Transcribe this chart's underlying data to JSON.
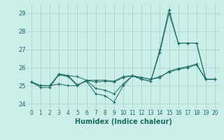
{
  "xlabel": "Humidex (Indice chaleur)",
  "bg_color": "#cceee8",
  "grid_color": "#aad4ce",
  "line_color": "#1a6b63",
  "xlim": [
    -0.5,
    20.5
  ],
  "ylim": [
    23.7,
    29.5
  ],
  "yticks": [
    24,
    25,
    26,
    27,
    28,
    29
  ],
  "xticks": [
    0,
    1,
    2,
    3,
    4,
    5,
    6,
    7,
    8,
    9,
    10,
    11,
    12,
    13,
    14,
    15,
    16,
    17,
    18,
    19,
    20
  ],
  "lines": [
    {
      "x": [
        0,
        1,
        2,
        3,
        4,
        5,
        6,
        7,
        8,
        9,
        10,
        11,
        12,
        13,
        14,
        15,
        16,
        17,
        18,
        19,
        20
      ],
      "y": [
        25.2,
        25.0,
        25.0,
        25.65,
        25.55,
        25.5,
        25.3,
        25.3,
        25.3,
        25.25,
        25.5,
        25.55,
        25.45,
        25.35,
        25.5,
        25.75,
        25.9,
        26.0,
        26.15,
        25.35,
        25.35
      ]
    },
    {
      "x": [
        0,
        1,
        2,
        3,
        4,
        5,
        6,
        7,
        8,
        9,
        10,
        11,
        12,
        13,
        14,
        15,
        16,
        17,
        18,
        19,
        20
      ],
      "y": [
        25.2,
        24.9,
        24.9,
        25.65,
        25.55,
        25.05,
        25.25,
        24.55,
        24.45,
        24.1,
        25.0,
        25.55,
        25.35,
        25.25,
        27.0,
        29.2,
        27.35,
        27.35,
        27.35,
        25.35,
        25.35
      ]
    },
    {
      "x": [
        0,
        1,
        2,
        3,
        4,
        5,
        6,
        7,
        8,
        9,
        10,
        11,
        12,
        13,
        14,
        15,
        16,
        17,
        18,
        19,
        20
      ],
      "y": [
        25.2,
        25.0,
        25.0,
        25.6,
        25.5,
        25.0,
        25.3,
        25.2,
        25.25,
        25.2,
        25.45,
        25.55,
        25.45,
        25.35,
        25.45,
        25.8,
        25.95,
        26.05,
        26.2,
        25.35,
        25.35
      ]
    },
    {
      "x": [
        0,
        1,
        2,
        3,
        4,
        5,
        6,
        7,
        8,
        9,
        10,
        11,
        12,
        13,
        14,
        15,
        16,
        17,
        18,
        19,
        20
      ],
      "y": [
        25.2,
        25.0,
        25.0,
        25.1,
        25.0,
        25.0,
        25.3,
        24.85,
        24.75,
        24.55,
        25.1,
        25.55,
        25.35,
        25.25,
        26.85,
        29.0,
        27.35,
        27.35,
        27.35,
        25.35,
        25.35
      ]
    }
  ]
}
